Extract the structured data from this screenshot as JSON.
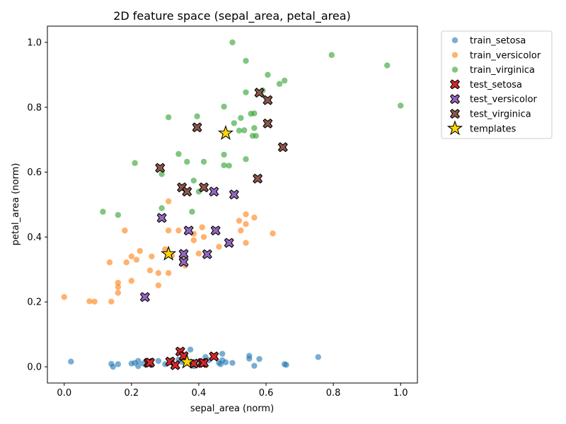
{
  "chart_data": {
    "type": "scatter",
    "title": "2D feature space (sepal_area, petal_area)",
    "xlabel": "sepal_area (norm)",
    "ylabel": "petal_area (norm)",
    "xlim": [
      -0.05,
      1.05
    ],
    "ylim": [
      -0.05,
      1.05
    ],
    "xticks": [
      "0.0",
      "0.2",
      "0.4",
      "0.6",
      "0.8",
      "1.0"
    ],
    "yticks": [
      "0.0",
      "0.2",
      "0.4",
      "0.6",
      "0.8",
      "1.0"
    ],
    "xtick_values": [
      0.0,
      0.2,
      0.4,
      0.6,
      0.8,
      1.0
    ],
    "ytick_values": [
      0.0,
      0.2,
      0.4,
      0.6,
      0.8,
      1.0
    ],
    "grid": false,
    "legend_position": "outside-right-top",
    "series": [
      {
        "name": "train_setosa",
        "marker": "circle",
        "color": "#1f77b4",
        "points": [
          [
            0.02,
            0.016
          ],
          [
            0.14,
            0.009
          ],
          [
            0.145,
            0.0
          ],
          [
            0.16,
            0.008
          ],
          [
            0.2,
            0.01
          ],
          [
            0.21,
            0.012
          ],
          [
            0.22,
            0.018
          ],
          [
            0.22,
            0.002
          ],
          [
            0.235,
            0.01
          ],
          [
            0.25,
            0.014
          ],
          [
            0.26,
            0.006
          ],
          [
            0.28,
            0.018
          ],
          [
            0.3,
            0.008
          ],
          [
            0.32,
            0.02
          ],
          [
            0.34,
            0.022
          ],
          [
            0.35,
            0.015
          ],
          [
            0.375,
            0.053
          ],
          [
            0.38,
            0.005
          ],
          [
            0.385,
            0.002
          ],
          [
            0.4,
            0.012
          ],
          [
            0.42,
            0.03
          ],
          [
            0.43,
            0.02
          ],
          [
            0.46,
            0.012
          ],
          [
            0.465,
            0.008
          ],
          [
            0.47,
            0.04
          ],
          [
            0.47,
            0.02
          ],
          [
            0.48,
            0.014
          ],
          [
            0.5,
            0.012
          ],
          [
            0.55,
            0.034
          ],
          [
            0.55,
            0.025
          ],
          [
            0.565,
            0.003
          ],
          [
            0.58,
            0.024
          ],
          [
            0.655,
            0.008
          ],
          [
            0.66,
            0.006
          ],
          [
            0.755,
            0.03
          ]
        ]
      },
      {
        "name": "train_versicolor",
        "marker": "circle",
        "color": "#ff7f0e",
        "points": [
          [
            0.0,
            0.215
          ],
          [
            0.075,
            0.202
          ],
          [
            0.09,
            0.201
          ],
          [
            0.135,
            0.322
          ],
          [
            0.14,
            0.201
          ],
          [
            0.16,
            0.259
          ],
          [
            0.16,
            0.246
          ],
          [
            0.16,
            0.228
          ],
          [
            0.18,
            0.42
          ],
          [
            0.185,
            0.322
          ],
          [
            0.2,
            0.34
          ],
          [
            0.2,
            0.265
          ],
          [
            0.215,
            0.33
          ],
          [
            0.225,
            0.357
          ],
          [
            0.255,
            0.297
          ],
          [
            0.26,
            0.34
          ],
          [
            0.28,
            0.289
          ],
          [
            0.28,
            0.251
          ],
          [
            0.3,
            0.362
          ],
          [
            0.31,
            0.51
          ],
          [
            0.31,
            0.42
          ],
          [
            0.31,
            0.289
          ],
          [
            0.32,
            0.342
          ],
          [
            0.34,
            0.42
          ],
          [
            0.35,
            0.33
          ],
          [
            0.36,
            0.312
          ],
          [
            0.385,
            0.41
          ],
          [
            0.385,
            0.39
          ],
          [
            0.4,
            0.349
          ],
          [
            0.41,
            0.43
          ],
          [
            0.415,
            0.4
          ],
          [
            0.46,
            0.37
          ],
          [
            0.52,
            0.45
          ],
          [
            0.525,
            0.42
          ],
          [
            0.54,
            0.47
          ],
          [
            0.54,
            0.44
          ],
          [
            0.54,
            0.382
          ],
          [
            0.565,
            0.46
          ],
          [
            0.62,
            0.411
          ]
        ]
      },
      {
        "name": "train_virginica",
        "marker": "circle",
        "color": "#2ca02c",
        "points": [
          [
            0.115,
            0.478
          ],
          [
            0.16,
            0.468
          ],
          [
            0.21,
            0.628
          ],
          [
            0.29,
            0.594
          ],
          [
            0.29,
            0.489
          ],
          [
            0.31,
            0.769
          ],
          [
            0.34,
            0.656
          ],
          [
            0.365,
            0.632
          ],
          [
            0.38,
            0.478
          ],
          [
            0.385,
            0.574
          ],
          [
            0.395,
            0.772
          ],
          [
            0.4,
            0.54
          ],
          [
            0.415,
            0.632
          ],
          [
            0.475,
            0.802
          ],
          [
            0.475,
            0.654
          ],
          [
            0.475,
            0.621
          ],
          [
            0.49,
            0.62
          ],
          [
            0.5,
            1.0
          ],
          [
            0.505,
            0.751
          ],
          [
            0.52,
            0.728
          ],
          [
            0.525,
            0.767
          ],
          [
            0.535,
            0.729
          ],
          [
            0.54,
            0.943
          ],
          [
            0.54,
            0.846
          ],
          [
            0.54,
            0.64
          ],
          [
            0.555,
            0.78
          ],
          [
            0.56,
            0.712
          ],
          [
            0.565,
            0.781
          ],
          [
            0.565,
            0.736
          ],
          [
            0.57,
            0.712
          ],
          [
            0.59,
            0.852
          ],
          [
            0.605,
            0.9
          ],
          [
            0.64,
            0.872
          ],
          [
            0.655,
            0.882
          ],
          [
            0.795,
            0.961
          ],
          [
            0.96,
            0.929
          ],
          [
            1.0,
            0.805
          ]
        ]
      },
      {
        "name": "test_setosa",
        "marker": "x",
        "color": "#d62728",
        "points": [
          [
            0.25,
            0.012
          ],
          [
            0.255,
            0.013
          ],
          [
            0.315,
            0.016
          ],
          [
            0.33,
            0.005
          ],
          [
            0.345,
            0.047
          ],
          [
            0.355,
            0.033
          ],
          [
            0.385,
            0.01
          ],
          [
            0.41,
            0.012
          ],
          [
            0.415,
            0.012
          ],
          [
            0.445,
            0.032
          ]
        ]
      },
      {
        "name": "test_versicolor",
        "marker": "x",
        "color": "#9467bd",
        "points": [
          [
            0.24,
            0.215
          ],
          [
            0.29,
            0.459
          ],
          [
            0.355,
            0.348
          ],
          [
            0.355,
            0.323
          ],
          [
            0.37,
            0.42
          ],
          [
            0.425,
            0.347
          ],
          [
            0.445,
            0.54
          ],
          [
            0.45,
            0.42
          ],
          [
            0.49,
            0.382
          ],
          [
            0.505,
            0.531
          ]
        ]
      },
      {
        "name": "test_virginica",
        "marker": "x",
        "color": "#8c564b",
        "points": [
          [
            0.285,
            0.613
          ],
          [
            0.35,
            0.553
          ],
          [
            0.365,
            0.54
          ],
          [
            0.395,
            0.738
          ],
          [
            0.415,
            0.553
          ],
          [
            0.575,
            0.58
          ],
          [
            0.58,
            0.845
          ],
          [
            0.605,
            0.822
          ],
          [
            0.605,
            0.75
          ],
          [
            0.65,
            0.677
          ]
        ]
      },
      {
        "name": "templates",
        "marker": "star",
        "color": "#ffd700",
        "points": [
          [
            0.31,
            0.348
          ],
          [
            0.48,
            0.72
          ],
          [
            0.365,
            0.015
          ]
        ]
      }
    ]
  }
}
